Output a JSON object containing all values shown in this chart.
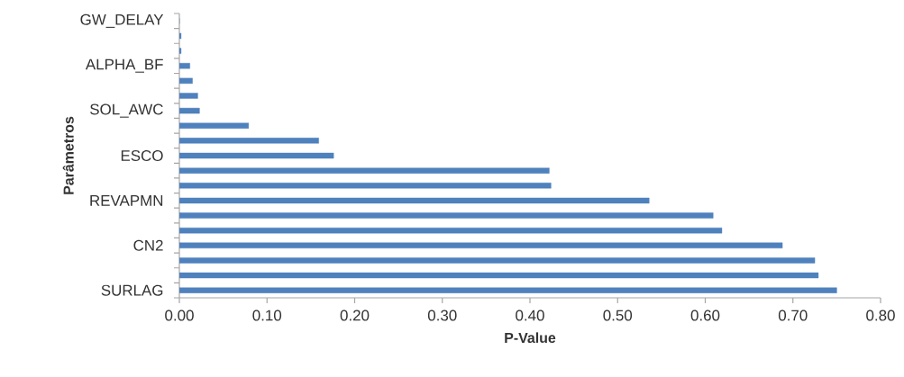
{
  "chart_data": {
    "type": "bar",
    "orientation": "horizontal",
    "xlabel": "P-Value",
    "ylabel": "Parâmetros",
    "color": "#4f81bd",
    "categories": [
      "GW_DELAY",
      null,
      null,
      "ALPHA_BF",
      null,
      null,
      "SOL_AWC",
      null,
      null,
      "ESCO",
      null,
      null,
      "REVAPMN",
      null,
      null,
      "CN2",
      null,
      null,
      "SURLAG"
    ],
    "values": [
      0,
      0.002,
      0.002,
      0.012,
      0.015,
      0.021,
      0.023,
      0.079,
      0.159,
      0.176,
      0.422,
      0.424,
      0.536,
      0.609,
      0.619,
      0.688,
      0.725,
      0.729,
      0.75
    ],
    "xlim": [
      0,
      0.8
    ],
    "xticks": [
      {
        "value": 0,
        "label": "0.00"
      },
      {
        "value": 0.1,
        "label": "0.10"
      },
      {
        "value": 0.2,
        "label": "0.20"
      },
      {
        "value": 0.3,
        "label": "0.30"
      },
      {
        "value": 0.4,
        "label": "0.40"
      },
      {
        "value": 0.5,
        "label": "0.50"
      },
      {
        "value": 0.6,
        "label": "0.60"
      },
      {
        "value": 0.7,
        "label": "0.70"
      },
      {
        "value": 0.8,
        "label": "0.80"
      }
    ],
    "grid": false,
    "legend": false
  }
}
